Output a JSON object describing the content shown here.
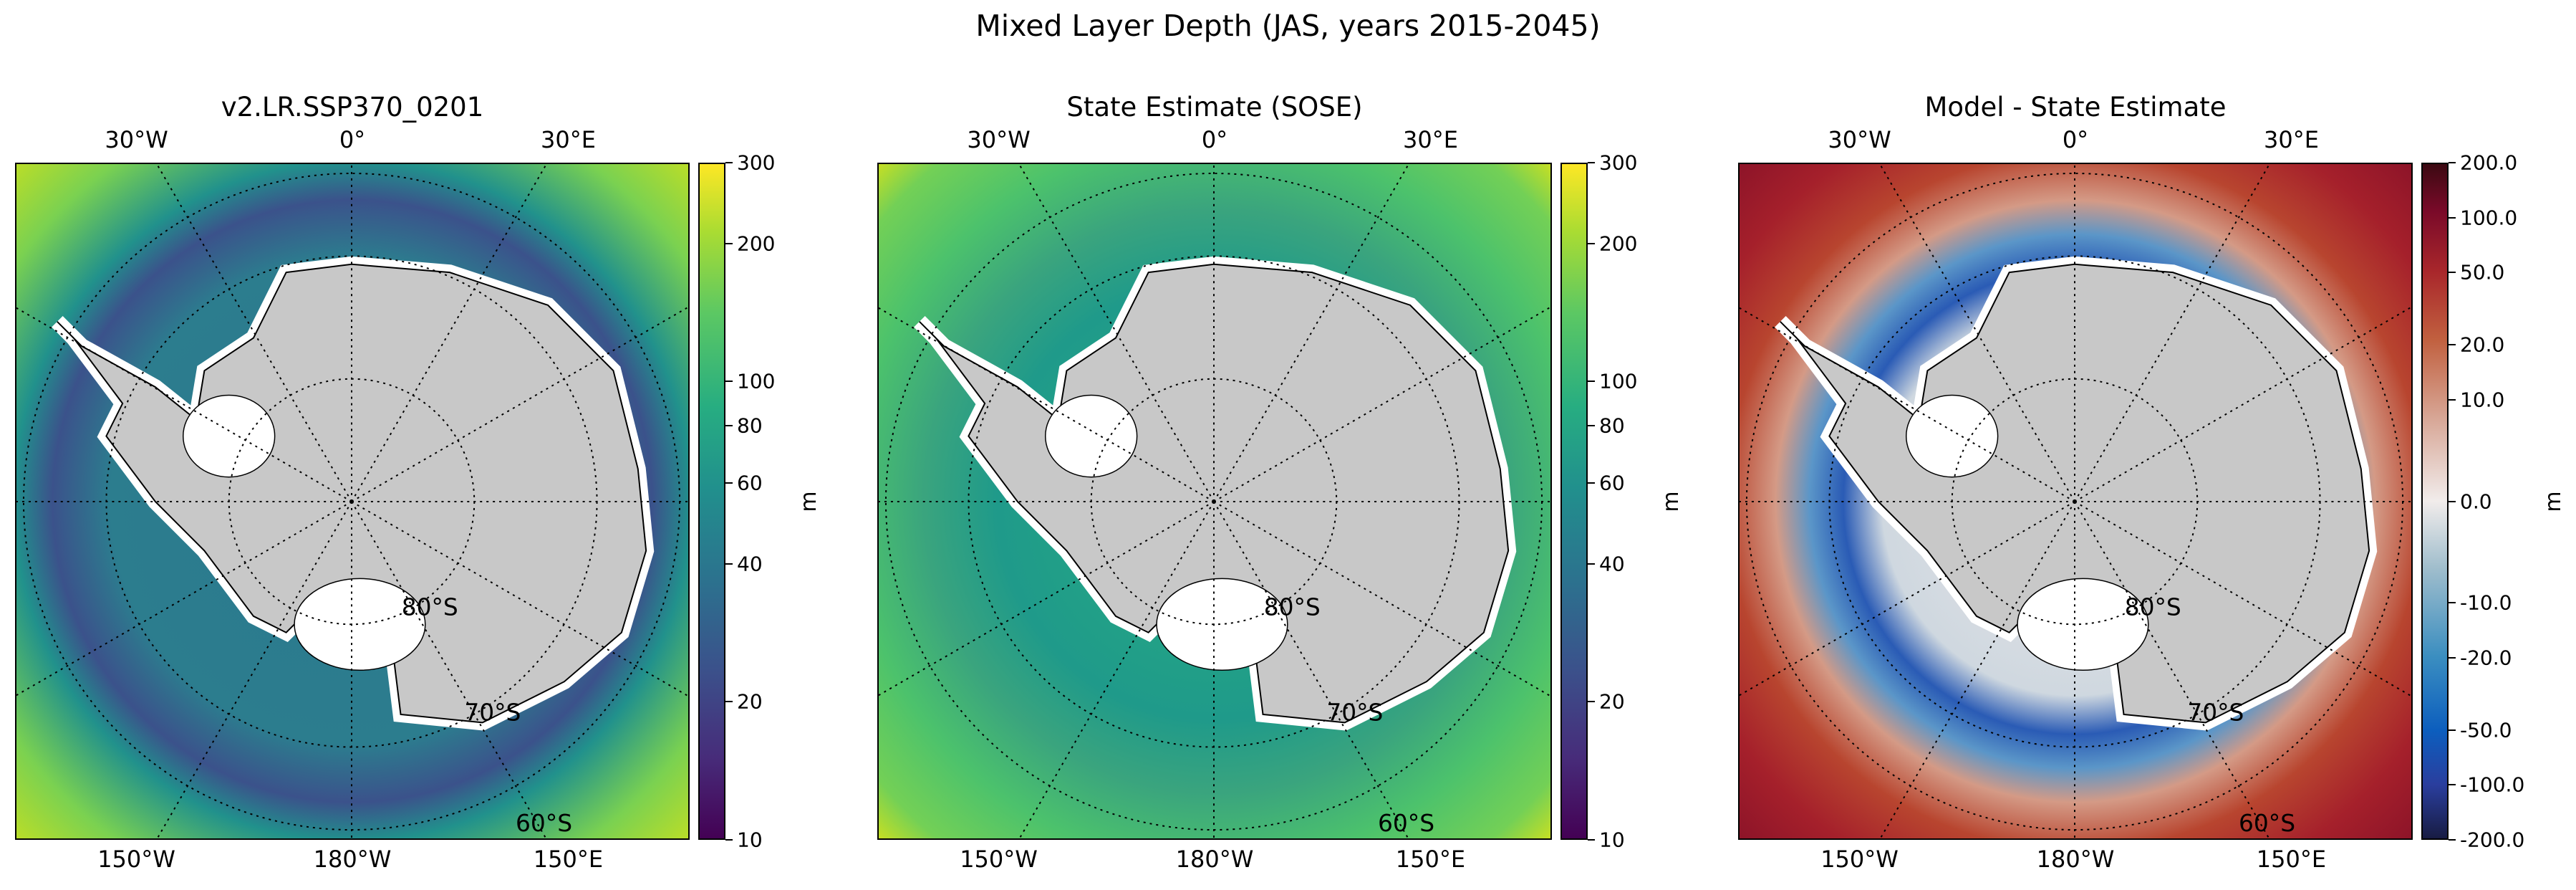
{
  "title": "Mixed Layer Depth (JAS, years 2015-2045)",
  "lon_labels_top": [
    "30°W",
    "0°",
    "30°E"
  ],
  "lon_labels_bottom": [
    "150°W",
    "180°W",
    "150°E"
  ],
  "lat_labels": [
    "80°S",
    "70°S",
    "60°S"
  ],
  "colors": {
    "land": "#c8c8c8",
    "ice_shelf": "#ffffff"
  },
  "chart_data": [
    {
      "type": "heatmap",
      "title": "v2.LR.SSP370_0201",
      "colorbar": {
        "label": "m",
        "scale": "log",
        "range": [
          10,
          300
        ],
        "ticks": [
          "10",
          "20",
          "40",
          "60",
          "80",
          "100",
          "200",
          "300"
        ],
        "cmap": "viridis"
      }
    },
    {
      "type": "heatmap",
      "title": "State Estimate (SOSE)",
      "colorbar": {
        "label": "m",
        "scale": "log",
        "range": [
          10,
          300
        ],
        "ticks": [
          "10",
          "20",
          "40",
          "60",
          "80",
          "100",
          "200",
          "300"
        ],
        "cmap": "viridis"
      }
    },
    {
      "type": "heatmap",
      "title": "Model - State Estimate",
      "colorbar": {
        "label": "m",
        "scale": "symlog",
        "linthresh": 10,
        "range": [
          -200,
          200
        ],
        "ticks": [
          "200.0",
          "100.0",
          "50.0",
          "20.0",
          "10.0",
          "0.0",
          "-10.0",
          "-20.0",
          "-50.0",
          "-100.0",
          "-200.0"
        ],
        "cmap": "balance"
      }
    }
  ]
}
